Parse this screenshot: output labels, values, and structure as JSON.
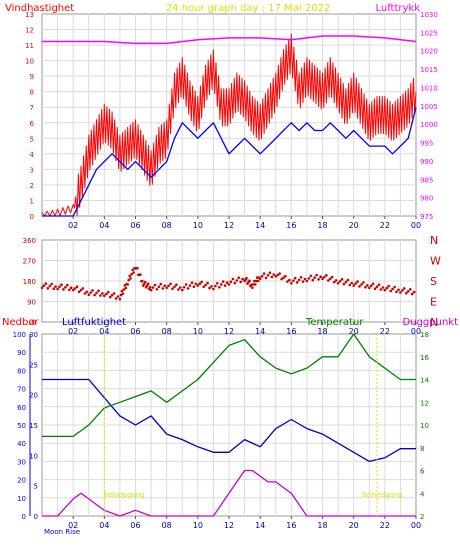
{
  "header": {
    "left_label": "Vindhastighet",
    "center_label": "24 hour graph day : 17 Mai 2022",
    "right_label": "Lufttrykk"
  },
  "colors": {
    "wind": "#ff0000",
    "wind_avg": "#0000ff",
    "pressure": "#ff00ff",
    "direction": "#cc0000",
    "humidity": "#0000cc",
    "temperature": "#008000",
    "dewpoint": "#cc00cc",
    "rain": "#0000ff",
    "title": "#e0e000",
    "sun": "#e0e000"
  },
  "chart_data": [
    {
      "type": "line",
      "name": "wind-pressure",
      "title": "24 hour graph day : 17 Mai 2022",
      "x_ticks": [
        "02",
        "04",
        "06",
        "08",
        "10",
        "12",
        "14",
        "16",
        "18",
        "20",
        "22",
        "00"
      ],
      "y_left_label": "Vindhastighet",
      "y_left_ticks": [
        "0",
        "1",
        "2",
        "3",
        "4",
        "5",
        "6",
        "7",
        "8",
        "9",
        "10",
        "11",
        "12",
        "13"
      ],
      "ylim_left": [
        0,
        13
      ],
      "y_right_label": "Lufttrykk",
      "y_right_ticks": [
        "975",
        "980",
        "985",
        "990",
        "995",
        "1000",
        "1005",
        "1010",
        "1015",
        "1020",
        "1025",
        "1030"
      ],
      "ylim_right": [
        975,
        1030
      ],
      "grid": true,
      "series": [
        {
          "color": "#ff0000",
          "axis": "left",
          "x": [
            0,
            1,
            2,
            2.5,
            3,
            3.5,
            4,
            4.5,
            5,
            5.5,
            6,
            6.5,
            7,
            7.5,
            8,
            8.5,
            9,
            9.5,
            10,
            10.5,
            11,
            11.5,
            12,
            12.5,
            13,
            13.5,
            14,
            14.5,
            15,
            15.5,
            16,
            16.5,
            17,
            17.5,
            18,
            18.5,
            19,
            19.5,
            20,
            20.5,
            21,
            21.5,
            22,
            22.5,
            23,
            23.5,
            24
          ],
          "y": [
            0,
            0.2,
            0.5,
            2,
            4,
            5,
            6,
            5.5,
            4,
            4.5,
            5,
            4,
            3,
            4.5,
            5,
            8,
            9,
            7.5,
            6.5,
            8.5,
            9.5,
            7,
            7,
            8,
            7.5,
            6.5,
            6,
            7,
            8,
            9.5,
            10.5,
            8,
            9,
            8.5,
            8,
            9,
            8,
            7,
            8,
            7,
            6,
            6.5,
            6.5,
            6,
            6.5,
            7,
            8
          ]
        },
        {
          "color": "#0000ff",
          "axis": "left",
          "x": [
            0,
            1,
            2,
            2.5,
            3,
            3.5,
            4,
            4.5,
            5,
            5.5,
            6,
            6.5,
            7,
            7.5,
            8,
            8.5,
            9,
            9.5,
            10,
            10.5,
            11,
            11.5,
            12,
            12.5,
            13,
            13.5,
            14,
            14.5,
            15,
            15.5,
            16,
            16.5,
            17,
            17.5,
            18,
            18.5,
            19,
            19.5,
            20,
            20.5,
            21,
            21.5,
            22,
            22.5,
            23,
            23.5,
            24
          ],
          "y": [
            0,
            0,
            0,
            1,
            2,
            3,
            3.5,
            4,
            3.5,
            3,
            3.5,
            3,
            2.5,
            3,
            3.5,
            5,
            6,
            5.5,
            5,
            5.5,
            6,
            5,
            4,
            4.5,
            5,
            4.5,
            4,
            4.5,
            5,
            5.5,
            6,
            5.5,
            6,
            5.5,
            5.5,
            6,
            5.5,
            5,
            5.5,
            5,
            4.5,
            4.5,
            4.5,
            4,
            4.5,
            5,
            7
          ]
        },
        {
          "color": "#ff00ff",
          "axis": "right",
          "x": [
            0,
            2,
            4,
            6,
            8,
            10,
            12,
            14,
            16,
            18,
            20,
            22,
            24
          ],
          "y": [
            1022.5,
            1022.5,
            1022.5,
            1022,
            1022,
            1023,
            1023.5,
            1023.5,
            1023,
            1024,
            1024,
            1023.5,
            1022.5
          ]
        }
      ]
    },
    {
      "type": "scatter",
      "name": "wind-direction",
      "x_ticks": [
        "02",
        "04",
        "06",
        "08",
        "10",
        "12",
        "14",
        "16",
        "18",
        "20",
        "22",
        "00"
      ],
      "y_ticks": [
        "0",
        "90",
        "180",
        "270",
        "360"
      ],
      "ylim": [
        0,
        360
      ],
      "compass_labels": [
        "N",
        "W",
        "S",
        "E",
        "N"
      ],
      "series": [
        {
          "color": "#cc0000",
          "x": [
            0,
            1,
            2,
            3,
            4,
            5,
            5.5,
            6,
            6.5,
            7,
            8,
            9,
            10,
            11,
            12,
            13,
            13.5,
            14,
            15,
            16,
            17,
            18,
            19,
            20,
            21,
            22,
            23,
            24
          ],
          "y": [
            160,
            155,
            150,
            130,
            125,
            110,
            175,
            245,
            170,
            150,
            160,
            150,
            170,
            155,
            175,
            190,
            160,
            200,
            210,
            180,
            190,
            200,
            180,
            170,
            160,
            150,
            140,
            130
          ]
        }
      ]
    },
    {
      "type": "line",
      "name": "humidity-temperature",
      "x_ticks": [
        "02",
        "04",
        "06",
        "08",
        "10",
        "12",
        "14",
        "16",
        "18",
        "20",
        "22",
        "00"
      ],
      "labels": {
        "rain": "Nedbør",
        "humidity": "Luftfuktighet",
        "temperature": "Temperatur",
        "dewpoint": "Duggpunkt"
      },
      "y_rain_ticks": [
        "0",
        "10",
        "20",
        "30",
        "40",
        "50",
        "60",
        "70",
        "80",
        "90",
        "100"
      ],
      "y_hum_ticks": [
        "0",
        "5",
        "10",
        "15",
        "20",
        "25",
        "30"
      ],
      "y_temp_ticks": [
        "2",
        "4",
        "6",
        "8",
        "10",
        "12",
        "14",
        "16",
        "18"
      ],
      "ylim_humidity": [
        0,
        100
      ],
      "ylim_temperature": [
        2,
        18
      ],
      "grid": true,
      "annotations": {
        "moon_rise": "Moon Rise",
        "sunrise": "Soloppgang",
        "sunset": "Solnedgang"
      },
      "series": [
        {
          "color": "#0000cc",
          "axis": "humidity",
          "x": [
            0,
            1,
            2,
            3,
            4,
            5,
            6,
            7,
            8,
            9,
            10,
            11,
            12,
            13,
            14,
            15,
            16,
            17,
            18,
            19,
            20,
            21,
            22,
            23,
            24
          ],
          "y": [
            75,
            75,
            75,
            75,
            65,
            55,
            50,
            55,
            45,
            42,
            38,
            35,
            35,
            42,
            38,
            48,
            53,
            48,
            45,
            40,
            35,
            30,
            32,
            37,
            37
          ]
        },
        {
          "color": "#008000",
          "axis": "temperature",
          "x": [
            0,
            1,
            2,
            3,
            4,
            5,
            6,
            7,
            8,
            9,
            10,
            11,
            12,
            13,
            14,
            15,
            16,
            17,
            18,
            19,
            20,
            21,
            22,
            23,
            24
          ],
          "y": [
            9,
            9,
            9,
            10,
            11.5,
            12,
            12.5,
            13,
            12,
            13,
            14,
            15.5,
            17,
            17.5,
            16,
            15,
            14.5,
            15,
            16,
            16,
            18,
            16,
            15,
            14,
            14
          ]
        },
        {
          "color": "#cc00cc",
          "axis": "temperature",
          "x": [
            0,
            1,
            2,
            2.5,
            3,
            3.5,
            4,
            5,
            6,
            7,
            8,
            9,
            10,
            11,
            11.5,
            12,
            12.5,
            13,
            13.5,
            14,
            14.5,
            15,
            15.5,
            16,
            16.5,
            17,
            17.5,
            18,
            20,
            22,
            24
          ],
          "y": [
            2,
            2,
            3.5,
            4,
            3.5,
            3,
            2.5,
            2,
            2.5,
            2,
            2,
            2,
            2,
            2,
            3,
            4,
            5,
            6,
            6,
            5.5,
            5,
            5,
            4.5,
            4,
            3,
            2,
            2,
            2,
            2,
            2,
            2
          ]
        }
      ]
    }
  ]
}
